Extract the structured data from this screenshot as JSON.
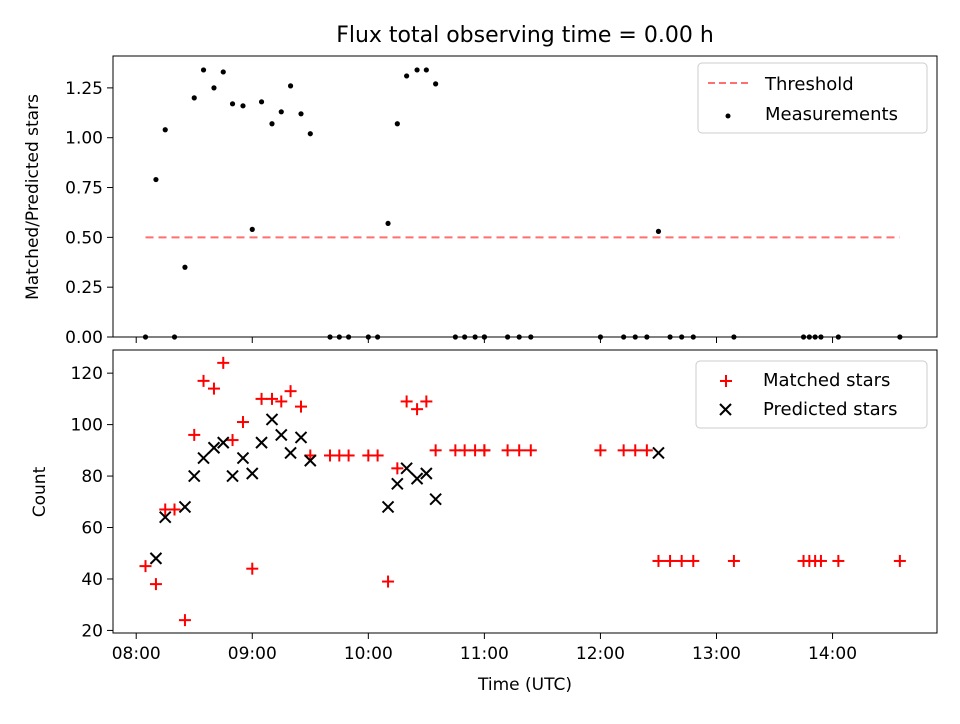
{
  "title": "Flux total observing time = 0.00 h",
  "colors": {
    "threshold": "#ff6f6f",
    "measurement": "#000000",
    "matched": "#ff0000",
    "predicted": "#000000"
  },
  "chart_data": [
    {
      "type": "scatter",
      "title": "Flux total observing time = 0.00 h",
      "ylabel": "Matched/Predicted stars",
      "xlabel": "",
      "x_unit": "hours (UTC)",
      "xlim": [
        7.8,
        14.9
      ],
      "ylim": [
        0,
        1.41
      ],
      "yticks": [
        0.0,
        0.25,
        0.5,
        0.75,
        1.0,
        1.25
      ],
      "ytick_labels": [
        "0.00",
        "0.25",
        "0.50",
        "0.75",
        "1.00",
        "1.25"
      ],
      "legend_position": "top-right",
      "series": [
        {
          "name": "Threshold",
          "kind": "dashed-line",
          "x": [
            8.08,
            14.58
          ],
          "y": [
            0.5,
            0.5
          ]
        },
        {
          "name": "Measurements",
          "kind": "points",
          "x": [
            8.08,
            8.17,
            8.25,
            8.33,
            8.42,
            8.5,
            8.58,
            8.67,
            8.75,
            8.83,
            8.92,
            9.0,
            9.08,
            9.17,
            9.25,
            9.33,
            9.42,
            9.5,
            9.67,
            9.75,
            9.83,
            10.0,
            10.08,
            10.17,
            10.25,
            10.33,
            10.42,
            10.5,
            10.58,
            10.75,
            10.83,
            10.92,
            11.0,
            11.0,
            11.2,
            11.3,
            11.4,
            12.0,
            12.2,
            12.3,
            12.4,
            12.5,
            12.6,
            12.7,
            12.8,
            13.15,
            13.75,
            13.8,
            13.85,
            13.9,
            14.05,
            14.58
          ],
          "y": [
            0,
            0.79,
            1.04,
            0,
            0.35,
            1.2,
            1.34,
            1.25,
            1.33,
            1.17,
            1.16,
            0.54,
            1.18,
            1.07,
            1.13,
            1.26,
            1.12,
            1.02,
            0,
            0,
            0,
            0,
            0,
            0.57,
            1.07,
            1.31,
            1.34,
            1.34,
            1.27,
            0,
            0,
            0,
            0,
            0,
            0,
            0,
            0,
            0,
            0,
            0,
            0,
            0.53,
            0,
            0,
            0,
            0,
            0,
            0,
            0,
            0,
            0,
            0
          ]
        }
      ]
    },
    {
      "type": "scatter",
      "ylabel": "Count",
      "xlabel": "Time (UTC)",
      "x_unit": "hours (UTC)",
      "xlim": [
        7.8,
        14.9
      ],
      "ylim": [
        19,
        129
      ],
      "yticks": [
        20,
        40,
        60,
        80,
        100,
        120
      ],
      "xticks": [
        8,
        9,
        10,
        11,
        12,
        13,
        14
      ],
      "xtick_labels": [
        "08:00",
        "09:00",
        "10:00",
        "11:00",
        "12:00",
        "13:00",
        "14:00"
      ],
      "legend_position": "top-right",
      "series": [
        {
          "name": "Matched stars",
          "marker": "plus",
          "x": [
            8.08,
            8.17,
            8.25,
            8.33,
            8.42,
            8.5,
            8.58,
            8.67,
            8.75,
            8.83,
            8.92,
            9.0,
            9.08,
            9.17,
            9.25,
            9.33,
            9.42,
            9.5,
            9.67,
            9.75,
            9.83,
            10.0,
            10.08,
            10.17,
            10.25,
            10.33,
            10.42,
            10.5,
            10.58,
            10.75,
            10.83,
            10.92,
            11.0,
            11.0,
            11.2,
            11.3,
            11.4,
            12.0,
            12.2,
            12.3,
            12.4,
            12.5,
            12.6,
            12.7,
            12.8,
            13.15,
            13.75,
            13.8,
            13.85,
            13.9,
            14.05,
            14.58
          ],
          "y": [
            45,
            38,
            67,
            67,
            24,
            96,
            117,
            114,
            124,
            94,
            101,
            44,
            110,
            110,
            109,
            113,
            107,
            88,
            88,
            88,
            88,
            88,
            88,
            39,
            83,
            109,
            106,
            109,
            90,
            90,
            90,
            90,
            90,
            90,
            90,
            90,
            90,
            90,
            90,
            90,
            90,
            47,
            47,
            47,
            47,
            47,
            47,
            47,
            47,
            47,
            47,
            47
          ]
        },
        {
          "name": "Predicted stars",
          "marker": "x",
          "x": [
            8.17,
            8.25,
            8.42,
            8.5,
            8.58,
            8.67,
            8.75,
            8.83,
            8.92,
            9.0,
            9.08,
            9.17,
            9.25,
            9.33,
            9.42,
            9.5,
            10.17,
            10.25,
            10.33,
            10.42,
            10.5,
            10.58,
            12.5
          ],
          "y": [
            48,
            64,
            68,
            80,
            87,
            91,
            93,
            80,
            87,
            81,
            93,
            102,
            96,
            89,
            95,
            86,
            68,
            77,
            83,
            79,
            81,
            71,
            89
          ]
        }
      ]
    }
  ]
}
